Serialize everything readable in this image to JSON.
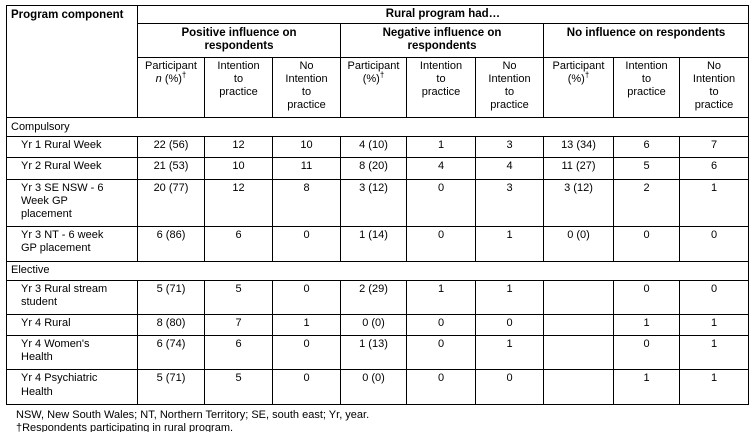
{
  "table": {
    "header": {
      "program_component": "Program component",
      "banner": "Rural program had…",
      "groups": [
        "Positive influence on respondents",
        "Negative influence on respondents",
        "No influence on respondents"
      ],
      "sub": {
        "participant": "Participant",
        "n": "n",
        "pct": "(%)",
        "dagger": "†",
        "intention_to_practice": "Intention to practice",
        "no_intention_to_practice": "No Intention to practice"
      }
    },
    "rows": [
      {
        "type": "section",
        "label": "Compulsory"
      },
      {
        "type": "data",
        "label": "Yr 1 Rural Week",
        "values": [
          "22 (56)",
          "12",
          "10",
          "4 (10)",
          "1",
          "3",
          "13 (34)",
          "6",
          "7"
        ]
      },
      {
        "type": "data",
        "label": "Yr 2 Rural Week",
        "values": [
          "21 (53)",
          "10",
          "11",
          "8 (20)",
          "4",
          "4",
          "11 (27)",
          "5",
          "6"
        ]
      },
      {
        "type": "data",
        "label": "Yr 3 SE NSW - 6 Week GP placement",
        "values": [
          "20 (77)",
          "12",
          "8",
          "3 (12)",
          "0",
          "3",
          "3 (12)",
          "2",
          "1"
        ]
      },
      {
        "type": "data",
        "label": "Yr 3 NT - 6 week GP placement",
        "values": [
          "6 (86)",
          "6",
          "0",
          "1 (14)",
          "0",
          "1",
          "0 (0)",
          "0",
          "0"
        ]
      },
      {
        "type": "section",
        "label": "Elective"
      },
      {
        "type": "data",
        "label": "Yr 3 Rural stream student",
        "values": [
          "5 (71)",
          "5",
          "0",
          "2 (29)",
          "1",
          "1",
          "",
          "0",
          "0"
        ]
      },
      {
        "type": "data",
        "label": "Yr 4 Rural",
        "values": [
          "8 (80)",
          "7",
          "1",
          "0 (0)",
          "0",
          "0",
          "",
          "1",
          "1"
        ]
      },
      {
        "type": "data",
        "label": "Yr 4 Women's Health",
        "values": [
          "6 (74)",
          "6",
          "0",
          "1 (13)",
          "0",
          "1",
          "",
          "0",
          "1"
        ]
      },
      {
        "type": "data",
        "label": "Yr 4 Psychiatric Health",
        "values": [
          "5 (71)",
          "5",
          "0",
          "0 (0)",
          "0",
          "0",
          "",
          "1",
          "1"
        ]
      }
    ]
  },
  "footnotes": [
    "NSW, New South Wales; NT, Northern Territory; SE, south east; Yr, year.",
    "†Respondents participating in rural program."
  ]
}
